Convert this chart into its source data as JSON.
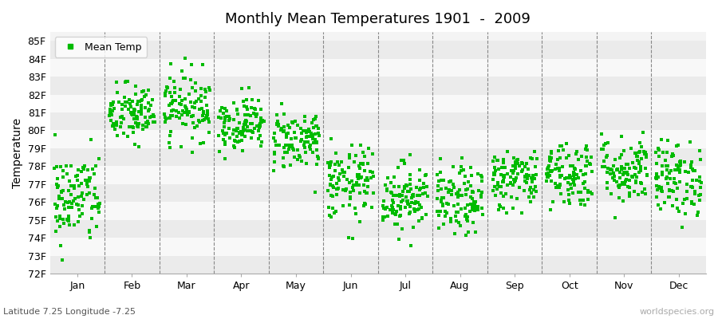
{
  "title": "Monthly Mean Temperatures 1901  -  2009",
  "ylabel": "Temperature",
  "xlabel_bottom": "Latitude 7.25 Longitude -7.25",
  "watermark": "worldspecies.org",
  "legend_label": "Mean Temp",
  "marker_color": "#00bb00",
  "ylim": [
    72,
    85.5
  ],
  "ytick_labels": [
    "72F",
    "73F",
    "74F",
    "75F",
    "76F",
    "77F",
    "78F",
    "79F",
    "80F",
    "81F",
    "82F",
    "83F",
    "84F",
    "85F"
  ],
  "ytick_values": [
    72,
    73,
    74,
    75,
    76,
    77,
    78,
    79,
    80,
    81,
    82,
    83,
    84,
    85
  ],
  "months": [
    "Jan",
    "Feb",
    "Mar",
    "Apr",
    "May",
    "Jun",
    "Jul",
    "Aug",
    "Sep",
    "Oct",
    "Nov",
    "Dec"
  ],
  "month_centers": [
    0.5,
    1.5,
    2.5,
    3.5,
    4.5,
    5.5,
    6.5,
    7.5,
    8.5,
    9.5,
    10.5,
    11.5
  ],
  "month_means": [
    76.2,
    80.9,
    81.4,
    80.4,
    79.5,
    77.0,
    76.3,
    76.0,
    77.3,
    77.6,
    77.8,
    77.3
  ],
  "month_stds": [
    1.3,
    0.85,
    0.95,
    0.75,
    0.85,
    1.05,
    0.95,
    0.95,
    0.85,
    0.95,
    0.95,
    1.05
  ],
  "n_years": 109,
  "background_color": "#ffffff",
  "band_colors": [
    "#ebebeb",
    "#f8f8f8"
  ],
  "plot_bg": "#f4f4f4",
  "vline_color": "#888888",
  "seed": 42
}
